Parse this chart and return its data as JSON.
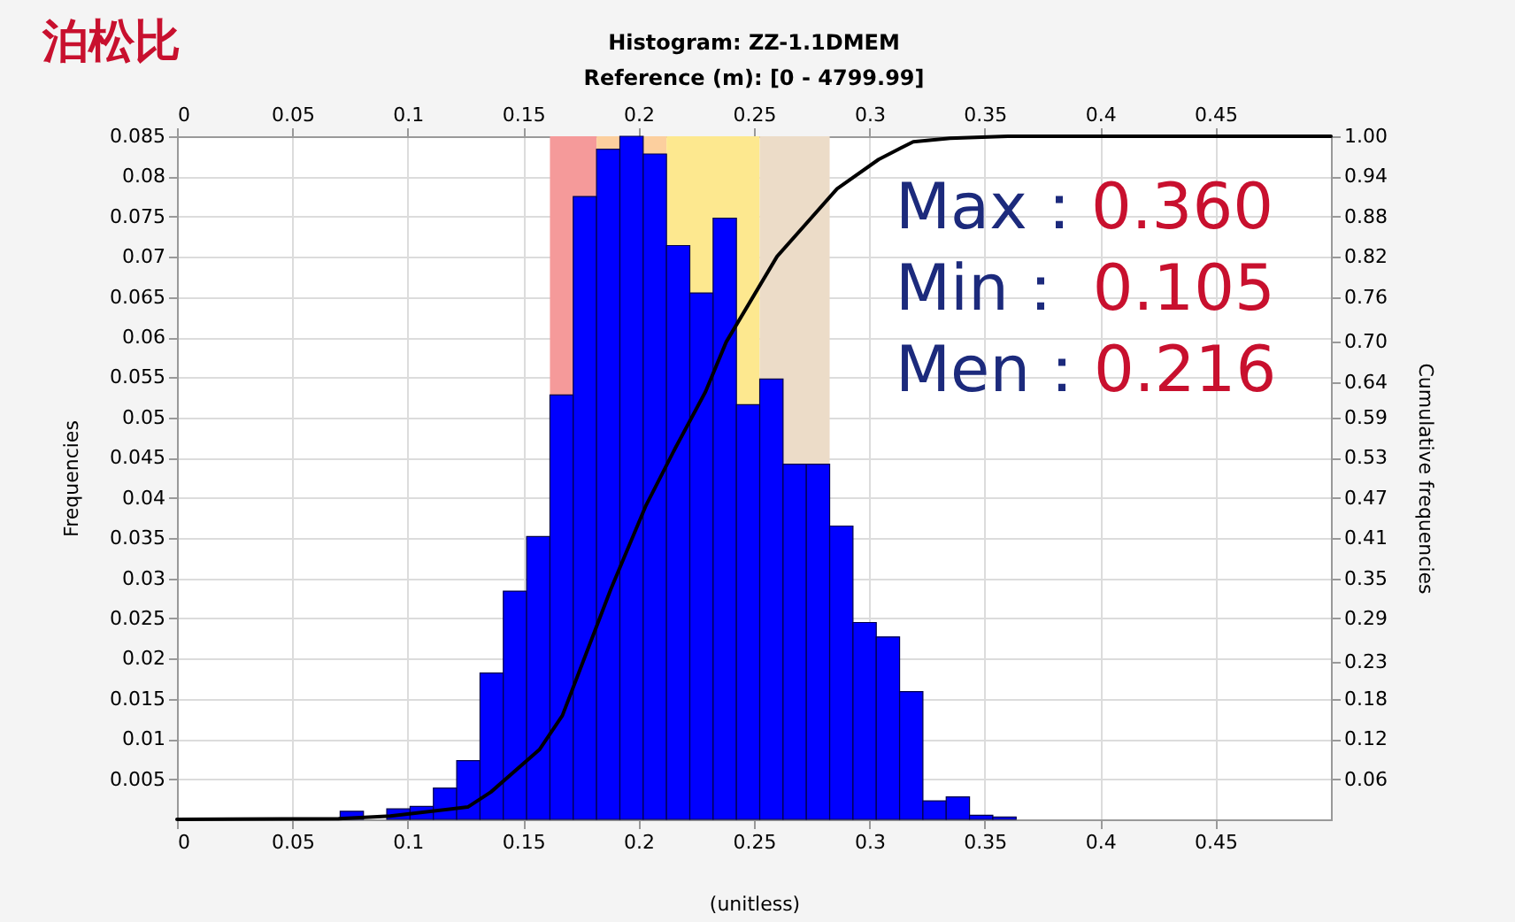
{
  "chart_data": {
    "type": "histogram",
    "title": "Histogram: ZZ-1.1DMEM",
    "subtitle": "Reference (m): [0 - 4799.99]",
    "xlabel": "(unitless)",
    "ylabel": "Frequencies",
    "y2label": "Cumulative frequencies",
    "annotations": [
      "泊松比",
      "Max：0.360",
      "Min： 0.105",
      "Men：0.216"
    ],
    "bins": [
      0,
      0.0101,
      0.0202,
      0.0303,
      0.0404,
      0.0505,
      0.0606,
      0.0707,
      0.0808,
      0.0909,
      0.101,
      0.1111,
      0.1212,
      0.1313,
      0.1414,
      0.1515,
      0.1616,
      0.1717,
      0.1818,
      0.1919,
      0.202,
      0.2121,
      0.2222,
      0.2323,
      0.2424,
      0.2525,
      0.2626,
      0.2727,
      0.2828,
      0.2929,
      0.303,
      0.3131,
      0.3232,
      0.3333,
      0.3434,
      0.3535,
      0.3636
    ],
    "values": [
      0,
      0,
      null,
      0,
      null,
      null,
      null,
      0.001,
      0,
      0.0013,
      0.0016,
      0.0039,
      0.0073,
      0.0182,
      0.0284,
      0.0352,
      0.0528,
      0.0775,
      0.0834,
      0.085,
      0.0828,
      0.0714,
      0.0655,
      0.0748,
      0.0516,
      0.0548,
      0.0442,
      0.0442,
      0.0365,
      0.0245,
      0.0227,
      0.0159,
      0.0023,
      0.0028,
      0.0005,
      0.0003
    ],
    "color": "#0000ff",
    "series": [
      {
        "type": "line",
        "axis": "y2",
        "color": "#000000",
        "x": [
          0,
          0.07,
          0.0924,
          0.126,
          0.136,
          0.157,
          0.167,
          0.188,
          0.203,
          0.216,
          0.229,
          0.238,
          0.26,
          0.286,
          0.304,
          0.319,
          0.335,
          0.36,
          0.5
        ],
        "values": [
          0,
          0.001,
          0.005,
          0.018,
          0.04,
          0.102,
          0.152,
          0.337,
          0.458,
          0.544,
          0.626,
          0.699,
          0.824,
          0.923,
          0.966,
          0.992,
          0.997,
          1,
          1
        ]
      }
    ],
    "bands": [
      {
        "axis": "x",
        "from": 0.1616,
        "to": 0.1818,
        "color": "#f59a9a"
      },
      {
        "axis": "x",
        "from": 0.1818,
        "to": 0.2121,
        "color": "#fccf9e"
      },
      {
        "axis": "x",
        "from": 0.2121,
        "to": 0.2525,
        "color": "#fde88f"
      },
      {
        "axis": "x",
        "from": 0.2525,
        "to": 0.2828,
        "color": "#ecdcc8"
      }
    ],
    "xlim": [
      0,
      0.5
    ],
    "xticks": [
      0,
      0.05,
      0.1,
      0.15,
      0.2,
      0.25,
      0.3,
      0.35,
      0.4,
      0.45
    ],
    "x2lim": [
      0,
      0.5
    ],
    "x2ticks": [
      0,
      0.05,
      0.1,
      0.15,
      0.2,
      0.25,
      0.3,
      0.35,
      0.4,
      0.45
    ],
    "ylim": [
      0,
      0.085
    ],
    "yticks": [
      0.005,
      0.01,
      0.015,
      0.02,
      0.025,
      0.03,
      0.035,
      0.04,
      0.045,
      0.05,
      0.055,
      0.06,
      0.065,
      0.07,
      0.075,
      0.08,
      0.085
    ],
    "y2lim": [
      0,
      1
    ],
    "y2ticks": [
      {
        "value": 0.0588,
        "label": "0.06"
      },
      {
        "value": 0.1176,
        "label": "0.12"
      },
      {
        "value": 0.1765,
        "label": "0.18"
      },
      {
        "value": 0.23,
        "label": "0.23"
      },
      {
        "value": 0.2941,
        "label": "0.29"
      },
      {
        "value": 0.3529,
        "label": "0.35"
      },
      {
        "value": 0.4118,
        "label": "0.41"
      },
      {
        "value": 0.4706,
        "label": "0.47"
      },
      {
        "value": 0.5294,
        "label": "0.53"
      },
      {
        "value": 0.5882,
        "label": "0.59"
      },
      {
        "value": 0.64,
        "label": "0.64"
      },
      {
        "value": 0.7,
        "label": "0.70"
      },
      {
        "value": 0.7647,
        "label": "0.76"
      },
      {
        "value": 0.8235,
        "label": "0.82"
      },
      {
        "value": 0.8824,
        "label": "0.88"
      },
      {
        "value": 0.9412,
        "label": "0.94"
      },
      {
        "value": 1,
        "label": "1.00"
      }
    ],
    "grid": true
  }
}
